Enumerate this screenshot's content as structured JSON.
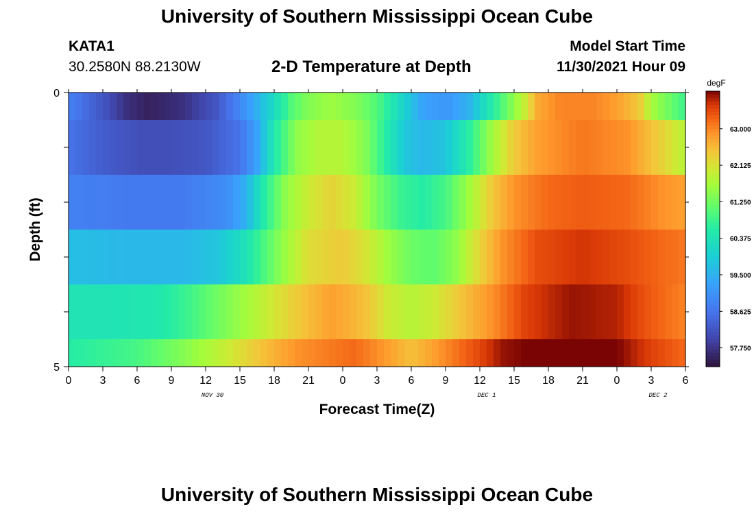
{
  "header": {
    "title": "University of Southern Mississippi Ocean Cube",
    "station": "KATA1",
    "coords": "30.2580N  88.2130W",
    "subtitle": "2-D Temperature at Depth",
    "model_start_label": "Model Start Time",
    "model_start_value": "11/30/2021 Hour 09"
  },
  "footer": {
    "title": "University of Southern Mississippi Ocean Cube"
  },
  "chart_data": {
    "type": "heatmap",
    "xlabel": "Forecast Time(Z)",
    "ylabel": "Depth (ft)",
    "y_tick_labels": [
      "0",
      "5"
    ],
    "ylim": [
      0,
      5
    ],
    "x_tick_labels": [
      "0",
      "3",
      "6",
      "9",
      "12",
      "15",
      "18",
      "21",
      "0",
      "3",
      "6",
      "9",
      "12",
      "15",
      "18",
      "21",
      "0",
      "3",
      "6"
    ],
    "date_labels": [
      {
        "text": "NOV 30",
        "after_tick": 4
      },
      {
        "text": "DEC 1",
        "after_tick": 12
      },
      {
        "text": "DEC 2",
        "after_tick": 17
      }
    ],
    "colorbar": {
      "unit": "degF",
      "min": 57.3,
      "max": 63.9,
      "tick_labels": [
        "63.000",
        "62.125",
        "61.250",
        "60.375",
        "59.500",
        "58.625",
        "57.750"
      ],
      "tick_values": [
        63.0,
        62.125,
        61.25,
        60.375,
        59.5,
        58.625,
        57.75
      ]
    },
    "depth_layers": [
      {
        "depth_range": "0-0.5",
        "profile": [
          [
            0,
            58.8
          ],
          [
            3,
            58.2
          ],
          [
            5,
            57.7
          ],
          [
            7,
            57.5
          ],
          [
            10,
            57.7
          ],
          [
            13,
            58.2
          ],
          [
            15,
            58.9
          ],
          [
            16.5,
            59.5
          ],
          [
            18,
            60.2
          ],
          [
            19.5,
            61.0
          ],
          [
            21,
            61.4
          ],
          [
            23,
            61.6
          ],
          [
            25,
            61.4
          ],
          [
            27,
            61.0
          ],
          [
            29,
            60.2
          ],
          [
            31,
            59.3
          ],
          [
            33,
            59.1
          ],
          [
            35,
            59.5
          ],
          [
            36.5,
            60.3
          ],
          [
            38,
            61.0
          ],
          [
            40,
            62.0
          ],
          [
            41,
            62.7
          ],
          [
            43,
            63.0
          ],
          [
            46,
            63.0
          ],
          [
            48,
            62.8
          ],
          [
            50,
            62.4
          ],
          [
            51,
            61.7
          ],
          [
            54,
            60.8
          ]
        ]
      },
      {
        "depth_range": "0.5-1.5",
        "profile": [
          [
            0,
            58.6
          ],
          [
            3,
            58.3
          ],
          [
            6,
            58.1
          ],
          [
            9,
            58.1
          ],
          [
            12,
            58.2
          ],
          [
            15,
            58.6
          ],
          [
            16.5,
            59.3
          ],
          [
            18,
            60.5
          ],
          [
            20,
            61.5
          ],
          [
            22,
            61.8
          ],
          [
            24,
            61.8
          ],
          [
            26,
            61.4
          ],
          [
            28,
            60.5
          ],
          [
            29.5,
            59.8
          ],
          [
            31,
            59.6
          ],
          [
            33,
            59.8
          ],
          [
            35,
            60.6
          ],
          [
            37,
            61.6
          ],
          [
            39,
            62.4
          ],
          [
            41,
            62.8
          ],
          [
            45,
            63.1
          ],
          [
            49,
            62.9
          ],
          [
            52,
            62.3
          ],
          [
            54,
            61.8
          ]
        ]
      },
      {
        "depth_range": "1.5-2.5",
        "profile": [
          [
            0,
            58.8
          ],
          [
            5,
            58.7
          ],
          [
            10,
            58.7
          ],
          [
            14,
            59.0
          ],
          [
            15.5,
            59.5
          ],
          [
            17,
            60.5
          ],
          [
            19,
            61.5
          ],
          [
            21,
            62.0
          ],
          [
            23,
            62.3
          ],
          [
            25,
            62.0
          ],
          [
            27,
            61.3
          ],
          [
            29,
            60.8
          ],
          [
            31,
            60.6
          ],
          [
            33,
            60.9
          ],
          [
            35,
            61.6
          ],
          [
            37,
            62.4
          ],
          [
            39,
            62.9
          ],
          [
            42,
            63.2
          ],
          [
            45,
            63.3
          ],
          [
            49,
            63.2
          ],
          [
            52,
            62.9
          ],
          [
            54,
            62.8
          ]
        ]
      },
      {
        "depth_range": "2.5-3.5",
        "profile": [
          [
            0,
            59.7
          ],
          [
            5,
            59.6
          ],
          [
            10,
            59.6
          ],
          [
            13,
            59.8
          ],
          [
            15,
            60.2
          ],
          [
            17,
            60.9
          ],
          [
            19,
            61.6
          ],
          [
            21,
            62.2
          ],
          [
            24,
            62.4
          ],
          [
            26,
            62.1
          ],
          [
            28,
            61.6
          ],
          [
            30,
            61.2
          ],
          [
            32,
            61.1
          ],
          [
            34,
            61.5
          ],
          [
            36,
            62.3
          ],
          [
            38,
            62.9
          ],
          [
            41,
            63.4
          ],
          [
            45,
            63.6
          ],
          [
            49,
            63.4
          ],
          [
            52,
            63.2
          ],
          [
            54,
            63.1
          ]
        ]
      },
      {
        "depth_range": "3.5-4.5",
        "profile": [
          [
            0,
            60.4
          ],
          [
            4,
            60.4
          ],
          [
            8,
            60.5
          ],
          [
            11,
            60.9
          ],
          [
            14,
            61.4
          ],
          [
            17,
            61.9
          ],
          [
            20,
            62.4
          ],
          [
            23,
            62.8
          ],
          [
            26,
            62.5
          ],
          [
            28,
            62.0
          ],
          [
            30,
            61.8
          ],
          [
            32,
            62.0
          ],
          [
            34,
            62.4
          ],
          [
            37,
            62.9
          ],
          [
            40,
            63.5
          ],
          [
            44,
            63.8
          ],
          [
            48,
            63.7
          ],
          [
            51,
            63.3
          ],
          [
            54,
            63.0
          ]
        ]
      },
      {
        "depth_range": "4.5-5",
        "profile": [
          [
            0,
            60.6
          ],
          [
            6,
            60.9
          ],
          [
            10,
            61.4
          ],
          [
            14,
            62.0
          ],
          [
            17,
            62.5
          ],
          [
            20,
            62.9
          ],
          [
            25,
            63.2
          ],
          [
            28,
            62.8
          ],
          [
            30,
            62.5
          ],
          [
            32,
            62.8
          ],
          [
            35,
            63.3
          ],
          [
            38,
            63.8
          ],
          [
            42,
            64.0
          ],
          [
            45,
            64.0
          ],
          [
            48,
            63.9
          ],
          [
            51,
            63.5
          ],
          [
            54,
            63.2
          ]
        ]
      }
    ]
  }
}
